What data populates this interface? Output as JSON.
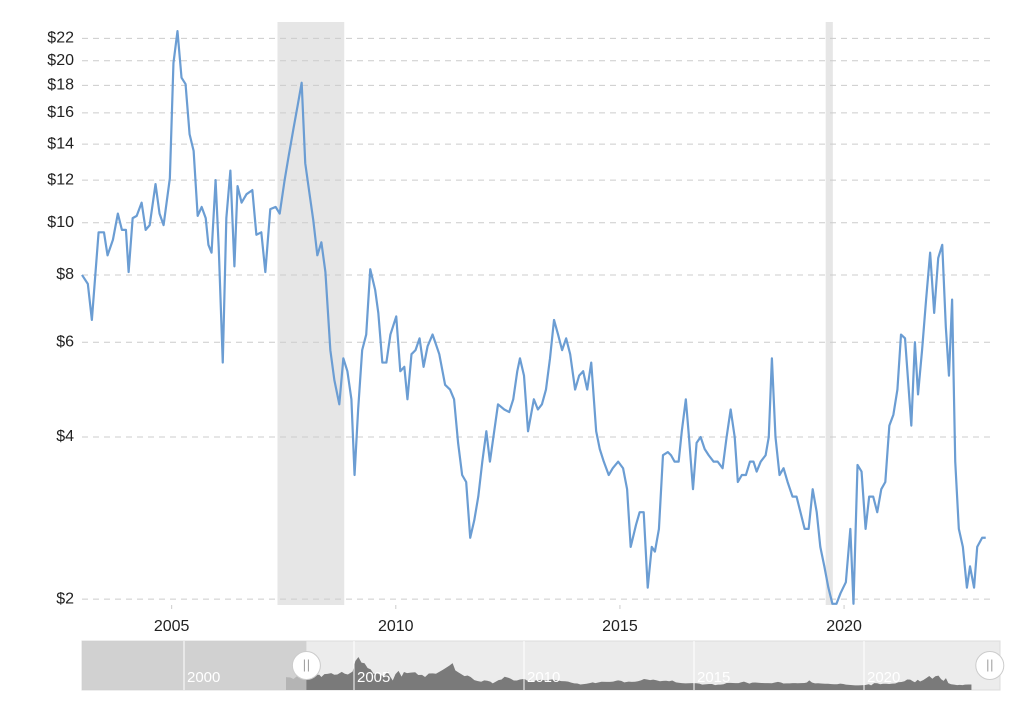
{
  "chart_data": {
    "type": "line",
    "log_scale": true,
    "grid": true,
    "color": "#6b9dd3",
    "recession_color": "#e6e6e6",
    "recessions": [
      [
        2007.36,
        2008.85
      ],
      [
        2019.59,
        2019.75
      ]
    ],
    "xlim": [
      2003.0,
      2023.3
    ],
    "xticks": [
      2005,
      2010,
      2015,
      2020
    ],
    "ylim": [
      1.95,
      23.6
    ],
    "yticks": [
      {
        "value": 2,
        "label": "$2"
      },
      {
        "value": 4,
        "label": "$4"
      },
      {
        "value": 6,
        "label": "$6"
      },
      {
        "value": 8,
        "label": "$8"
      },
      {
        "value": 10,
        "label": "$10"
      },
      {
        "value": 12,
        "label": "$12"
      },
      {
        "value": 14,
        "label": "$14"
      },
      {
        "value": 16,
        "label": "$16"
      },
      {
        "value": 18,
        "label": "$18"
      },
      {
        "value": 20,
        "label": "$20"
      },
      {
        "value": 22,
        "label": "$22"
      }
    ],
    "x": [
      2003.0,
      2003.13,
      2003.22,
      2003.37,
      2003.49,
      2003.57,
      2003.69,
      2003.8,
      2003.89,
      2003.98,
      2004.04,
      2004.13,
      2004.22,
      2004.33,
      2004.42,
      2004.51,
      2004.64,
      2004.73,
      2004.82,
      2004.96,
      2005.04,
      2005.13,
      2005.22,
      2005.31,
      2005.4,
      2005.49,
      2005.58,
      2005.67,
      2005.76,
      2005.82,
      2005.89,
      2005.98,
      2006.05,
      2006.14,
      2006.22,
      2006.31,
      2006.4,
      2006.47,
      2006.56,
      2006.67,
      2006.8,
      2006.89,
      2007.0,
      2007.09,
      2007.2,
      2007.32,
      2007.41,
      2007.52,
      2007.61,
      2007.72,
      2007.81,
      2007.9,
      2007.98,
      2008.07,
      2008.16,
      2008.25,
      2008.34,
      2008.43,
      2008.54,
      2008.63,
      2008.74,
      2008.83,
      2008.92,
      2009.01,
      2009.08,
      2009.16,
      2009.25,
      2009.34,
      2009.43,
      2009.54,
      2009.61,
      2009.7,
      2009.79,
      2009.88,
      2010.01,
      2010.1,
      2010.19,
      2010.26,
      2010.35,
      2010.44,
      2010.53,
      2010.62,
      2010.71,
      2010.82,
      2010.88,
      2010.97,
      2011.1,
      2011.21,
      2011.3,
      2011.39,
      2011.48,
      2011.57,
      2011.66,
      2011.75,
      2011.84,
      2011.93,
      2012.02,
      2012.1,
      2012.28,
      2012.42,
      2012.53,
      2012.62,
      2012.71,
      2012.77,
      2012.86,
      2012.95,
      2013.08,
      2013.17,
      2013.26,
      2013.35,
      2013.44,
      2013.53,
      2013.62,
      2013.71,
      2013.8,
      2013.89,
      2014.0,
      2014.09,
      2014.18,
      2014.27,
      2014.36,
      2014.47,
      2014.55,
      2014.64,
      2014.75,
      2014.84,
      2014.96,
      2015.07,
      2015.16,
      2015.24,
      2015.36,
      2015.44,
      2015.53,
      2015.62,
      2015.71,
      2015.78,
      2015.87,
      2015.96,
      2016.07,
      2016.14,
      2016.22,
      2016.31,
      2016.38,
      2016.47,
      2016.54,
      2016.63,
      2016.71,
      2016.8,
      2016.89,
      2016.98,
      2017.09,
      2017.18,
      2017.29,
      2017.38,
      2017.47,
      2017.56,
      2017.63,
      2017.72,
      2017.81,
      2017.9,
      2017.98,
      2018.05,
      2018.14,
      2018.25,
      2018.32,
      2018.39,
      2018.47,
      2018.56,
      2018.65,
      2018.74,
      2018.85,
      2018.94,
      2019.05,
      2019.12,
      2019.21,
      2019.3,
      2019.39,
      2019.47,
      2019.56,
      2019.65,
      2019.74,
      2019.83,
      2019.92,
      2020.04,
      2020.14,
      2020.21,
      2020.3,
      2020.39,
      2020.48,
      2020.56,
      2020.65,
      2020.74,
      2020.83,
      2020.92,
      2021.01,
      2021.1,
      2021.19,
      2021.27,
      2021.36,
      2021.45,
      2021.5,
      2021.58,
      2021.65,
      2021.74,
      2021.83,
      2021.92,
      2022.01,
      2022.1,
      2022.19,
      2022.27,
      2022.34,
      2022.41,
      2022.48,
      2022.56,
      2022.65,
      2022.74,
      2022.81,
      2022.9,
      2022.97,
      2023.08,
      2023.16
    ],
    "values": [
      8,
      7.7,
      6.6,
      9.6,
      9.6,
      8.7,
      9.3,
      10.4,
      9.7,
      9.7,
      8.1,
      10.2,
      10.3,
      10.9,
      9.7,
      9.9,
      11.8,
      10.4,
      9.9,
      12.1,
      19.8,
      22.7,
      18.6,
      18.1,
      14.6,
      13.6,
      10.3,
      10.7,
      10.2,
      9.1,
      8.8,
      12.0,
      9.0,
      5.5,
      10.2,
      12.5,
      8.3,
      11.7,
      10.9,
      11.3,
      11.5,
      9.5,
      9.6,
      8.1,
      10.6,
      10.7,
      10.4,
      12.0,
      13.3,
      15.0,
      16.5,
      18.2,
      12.9,
      11.4,
      10.1,
      8.7,
      9.2,
      8.1,
      5.8,
      5.1,
      4.6,
      5.6,
      5.3,
      4.7,
      3.4,
      4.5,
      5.8,
      6.2,
      8.2,
      7.5,
      6.8,
      5.5,
      5.5,
      6.2,
      6.7,
      5.3,
      5.4,
      4.7,
      5.7,
      5.8,
      6.1,
      5.4,
      5.9,
      6.2,
      6.0,
      5.7,
      5.0,
      4.9,
      4.7,
      3.9,
      3.4,
      3.3,
      2.6,
      2.8,
      3.1,
      3.6,
      4.1,
      3.6,
      4.6,
      4.5,
      4.45,
      4.7,
      5.3,
      5.6,
      5.2,
      4.1,
      4.7,
      4.5,
      4.6,
      4.9,
      5.6,
      6.6,
      6.2,
      5.8,
      6.1,
      5.7,
      4.9,
      5.2,
      5.3,
      4.9,
      5.5,
      4.1,
      3.8,
      3.6,
      3.4,
      3.5,
      3.6,
      3.5,
      3.2,
      2.5,
      2.75,
      2.9,
      2.9,
      2.1,
      2.5,
      2.45,
      2.7,
      3.7,
      3.75,
      3.7,
      3.6,
      3.6,
      4.1,
      4.7,
      4.0,
      3.2,
      3.9,
      4.0,
      3.8,
      3.7,
      3.6,
      3.6,
      3.5,
      4.0,
      4.5,
      4.0,
      3.3,
      3.4,
      3.4,
      3.6,
      3.6,
      3.45,
      3.6,
      3.7,
      4.0,
      5.6,
      4.0,
      3.4,
      3.5,
      3.3,
      3.1,
      3.1,
      2.85,
      2.7,
      2.7,
      3.2,
      2.9,
      2.5,
      2.3,
      2.1,
      1.96,
      1.96,
      2.05,
      2.15,
      2.7,
      1.96,
      3.55,
      3.45,
      2.7,
      3.1,
      3.1,
      2.9,
      3.2,
      3.3,
      4.2,
      4.4,
      4.9,
      6.2,
      6.1,
      4.8,
      4.2,
      6.0,
      4.8,
      5.8,
      7.2,
      8.8,
      6.8,
      8.6,
      9.1,
      6.4,
      5.2,
      7.2,
      3.6,
      2.7,
      2.5,
      2.1,
      2.3,
      2.1,
      2.5,
      2.6,
      2.6
    ],
    "navigator": {
      "xlim": [
        1997.0,
        2024.0
      ],
      "xticks": [
        2000,
        2005,
        2010,
        2015,
        2020
      ],
      "selection": [
        2003.6,
        2023.7
      ]
    }
  }
}
